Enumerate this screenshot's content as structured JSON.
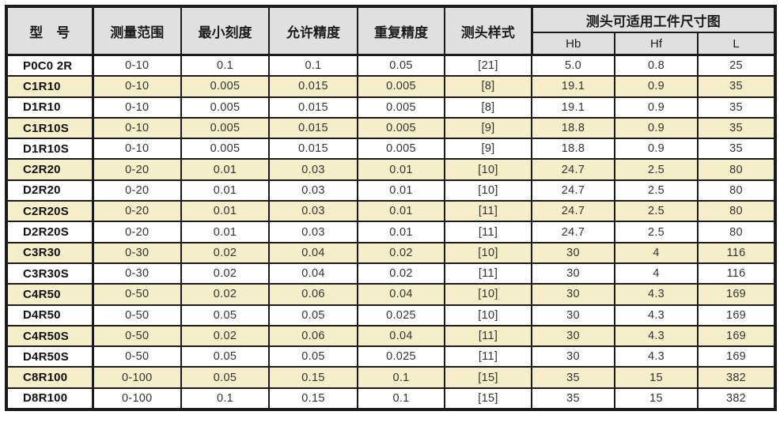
{
  "colors": {
    "border": "#1b1b1b",
    "header_bg": "#e0e0e0",
    "stripe_bg": "#f5eec9",
    "text": "#333333"
  },
  "table": {
    "columns": {
      "model": "型　号",
      "range": "测量范围",
      "min_scale": "最小刻度",
      "allowed_accuracy": "允许精度",
      "repeat_accuracy": "重复精度",
      "probe_style": "测头样式",
      "size_group": "测头可适用工件尺寸图",
      "sub_hb": "Hb",
      "sub_hf": "Hf",
      "sub_l": "L"
    },
    "rows": [
      [
        "P0C0 2R",
        "0-10",
        "0.1",
        "0.1",
        "0.05",
        "[21]",
        "5.0",
        "0.8",
        "25"
      ],
      [
        "C1R10",
        "0-10",
        "0.005",
        "0.015",
        "0.005",
        "[8]",
        "19.1",
        "0.9",
        "35"
      ],
      [
        "D1R10",
        "0-10",
        "0.005",
        "0.015",
        "0.005",
        "[8]",
        "19.1",
        "0.9",
        "35"
      ],
      [
        "C1R10S",
        "0-10",
        "0.005",
        "0.015",
        "0.005",
        "[9]",
        "18.8",
        "0.9",
        "35"
      ],
      [
        "D1R10S",
        "0-10",
        "0.005",
        "0.015",
        "0.005",
        "[9]",
        "18.8",
        "0.9",
        "35"
      ],
      [
        "C2R20",
        "0-20",
        "0.01",
        "0.03",
        "0.01",
        "[10]",
        "24.7",
        "2.5",
        "80"
      ],
      [
        "D2R20",
        "0-20",
        "0.01",
        "0.03",
        "0.01",
        "[10]",
        "24.7",
        "2.5",
        "80"
      ],
      [
        "C2R20S",
        "0-20",
        "0.01",
        "0.03",
        "0.01",
        "[11]",
        "24.7",
        "2.5",
        "80"
      ],
      [
        "D2R20S",
        "0-20",
        "0.01",
        "0.03",
        "0.01",
        "[11]",
        "24.7",
        "2.5",
        "80"
      ],
      [
        "C3R30",
        "0-30",
        "0.02",
        "0.04",
        "0.02",
        "[10]",
        "30",
        "4",
        "116"
      ],
      [
        "C3R30S",
        "0-30",
        "0.02",
        "0.04",
        "0.02",
        "[11]",
        "30",
        "4",
        "116"
      ],
      [
        "C4R50",
        "0-50",
        "0.02",
        "0.06",
        "0.04",
        "[10]",
        "30",
        "4.3",
        "169"
      ],
      [
        "D4R50",
        "0-50",
        "0.05",
        "0.05",
        "0.025",
        "[10]",
        "30",
        "4.3",
        "169"
      ],
      [
        "C4R50S",
        "0-50",
        "0.02",
        "0.06",
        "0.04",
        "[11]",
        "30",
        "4.3",
        "169"
      ],
      [
        "D4R50S",
        "0-50",
        "0.05",
        "0.05",
        "0.025",
        "[11]",
        "30",
        "4.3",
        "169"
      ],
      [
        "C8R100",
        "0-100",
        "0.05",
        "0.15",
        "0.1",
        "[15]",
        "35",
        "15",
        "382"
      ],
      [
        "D8R100",
        "0-100",
        "0.1",
        "0.15",
        "0.1",
        "[15]",
        "35",
        "15",
        "382"
      ]
    ]
  }
}
